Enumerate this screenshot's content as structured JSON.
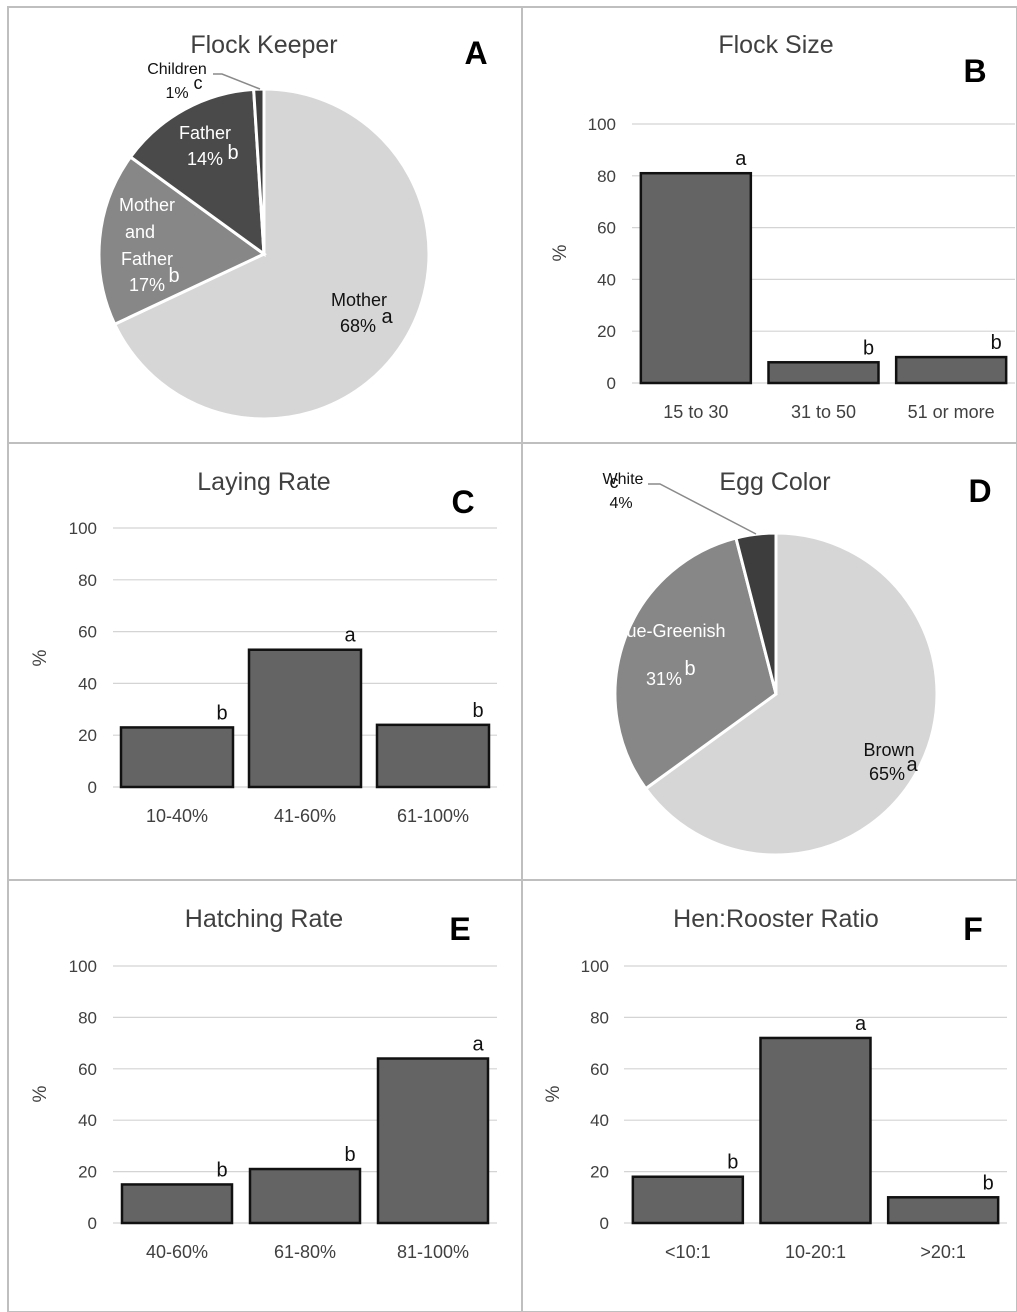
{
  "colors": {
    "bar_fill": "#646464",
    "bar_stroke": "#111111",
    "pie_light": "#d6d6d6",
    "pie_medium": "#878787",
    "pie_dark": "#4a4a4a",
    "pie_darkest": "#3d3d3d",
    "grid": "#d4d4d4",
    "panel_border": "#bfbfbf",
    "text": "#404040"
  },
  "chart_data": [
    {
      "panel": "A",
      "type": "pie",
      "title": "Flock Keeper",
      "slices": [
        {
          "label": "Mother",
          "value": 68,
          "pct": "68%",
          "letter": "a",
          "color": "#d6d6d6"
        },
        {
          "label": "Mother and Father",
          "value": 17,
          "pct": "17%",
          "letter": "b",
          "color": "#878787"
        },
        {
          "label": "Father",
          "value": 14,
          "pct": "14%",
          "letter": "b",
          "color": "#4a4a4a"
        },
        {
          "label": "Children",
          "value": 1,
          "pct": "1%",
          "letter": "c",
          "color": "#3d3d3d"
        }
      ]
    },
    {
      "panel": "B",
      "type": "bar",
      "title": "Flock Size",
      "ylabel": "%",
      "ylim": [
        0,
        100
      ],
      "yticks": [
        0,
        20,
        40,
        60,
        80,
        100
      ],
      "grid": true,
      "categories": [
        "15 to 30",
        "31 to 50",
        "51 or more"
      ],
      "values": [
        81,
        8,
        10
      ],
      "letters": [
        "a",
        "b",
        "b"
      ]
    },
    {
      "panel": "C",
      "type": "bar",
      "title": "Laying Rate",
      "ylabel": "%",
      "ylim": [
        0,
        100
      ],
      "yticks": [
        0,
        20,
        40,
        60,
        80,
        100
      ],
      "grid": true,
      "categories": [
        "10-40%",
        "41-60%",
        "61-100%"
      ],
      "values": [
        23,
        53,
        24
      ],
      "letters": [
        "b",
        "a",
        "b"
      ]
    },
    {
      "panel": "D",
      "type": "pie",
      "title": "Egg Color",
      "slices": [
        {
          "label": "Brown",
          "value": 65,
          "pct": "65%",
          "letter": "a",
          "color": "#d6d6d6"
        },
        {
          "label": "Blue-Greenish",
          "value": 31,
          "pct": "31%",
          "letter": "b",
          "color": "#878787"
        },
        {
          "label": "White",
          "value": 4,
          "pct": "4%",
          "letter": "c",
          "color": "#3d3d3d"
        }
      ]
    },
    {
      "panel": "E",
      "type": "bar",
      "title": "Hatching Rate",
      "ylabel": "%",
      "ylim": [
        0,
        100
      ],
      "yticks": [
        0,
        20,
        40,
        60,
        80,
        100
      ],
      "grid": true,
      "categories": [
        "40-60%",
        "61-80%",
        "81-100%"
      ],
      "values": [
        15,
        21,
        64
      ],
      "letters": [
        "b",
        "b",
        "a"
      ]
    },
    {
      "panel": "F",
      "type": "bar",
      "title": "Hen:Rooster Ratio",
      "ylabel": "%",
      "ylim": [
        0,
        100
      ],
      "yticks": [
        0,
        20,
        40,
        60,
        80,
        100
      ],
      "grid": true,
      "categories": [
        "<10:1",
        "10-20:1",
        ">20:1"
      ],
      "values": [
        18,
        72,
        10
      ],
      "letters": [
        "b",
        "a",
        "b"
      ]
    }
  ]
}
